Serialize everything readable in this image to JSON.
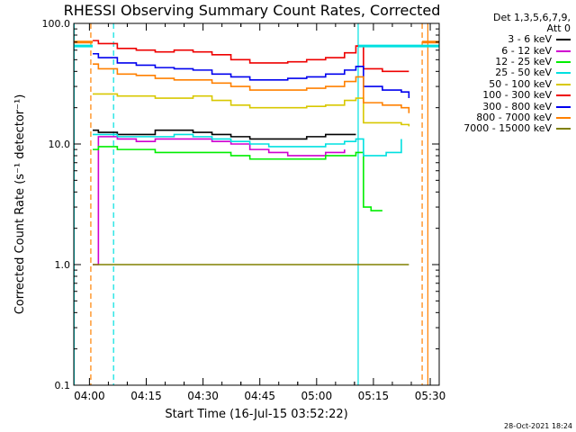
{
  "chart_data": {
    "type": "line",
    "title": "RHESSI Observing Summary Count Rates, Corrected",
    "xlabel": "Start Time (16-Jul-15 03:52:22)",
    "ylabel": "Corrected Count Rate (s⁻¹ detector⁻¹)",
    "yscale": "log",
    "ylim": [
      0.1,
      100
    ],
    "yticks": [
      "0.1",
      "1.0",
      "10.0",
      "100.0"
    ],
    "xlim_minutes": [
      3.5,
      100
    ],
    "xticks": [
      {
        "label": "04:00",
        "minutes": 7.63
      },
      {
        "label": "04:15",
        "minutes": 22.63
      },
      {
        "label": "04:30",
        "minutes": 37.63
      },
      {
        "label": "04:45",
        "minutes": 52.63
      },
      {
        "label": "05:00",
        "minutes": 67.63
      },
      {
        "label": "05:15",
        "minutes": 82.63
      },
      {
        "label": "05:30",
        "minutes": 97.63
      }
    ],
    "legend_header": [
      "Det 1,3,5,6,7,9,",
      "Att 0"
    ],
    "legend_position": "right",
    "series": [
      {
        "name": "3 - 6 keV",
        "color": "#000000",
        "x": [
          8.5,
          10,
          15,
          20,
          25,
          30,
          35,
          40,
          45,
          50,
          55,
          60,
          65,
          70,
          75,
          78
        ],
        "y": [
          13,
          12.5,
          12,
          12,
          13,
          13,
          12.5,
          12,
          11.5,
          11,
          11,
          11,
          11.5,
          12,
          12,
          12
        ]
      },
      {
        "name": "6 - 12 keV",
        "color": "#d000d0",
        "x": [
          8.5,
          10,
          15,
          20,
          25,
          30,
          35,
          40,
          45,
          50,
          55,
          60,
          65,
          70,
          75
        ],
        "y": [
          1.0,
          11.5,
          11,
          10.5,
          11,
          11,
          11,
          10.5,
          10,
          9,
          8.5,
          8,
          8,
          8.5,
          9
        ]
      },
      {
        "name": "12 - 25 keV",
        "color": "#00ee00",
        "x": [
          8.5,
          10,
          15,
          20,
          25,
          30,
          35,
          40,
          45,
          50,
          55,
          60,
          65,
          70,
          75,
          78,
          80,
          82,
          85
        ],
        "y": [
          9,
          9.5,
          9,
          9,
          8.5,
          8.5,
          8.5,
          8.5,
          8,
          7.5,
          7.5,
          7.5,
          7.5,
          8,
          8,
          8.5,
          3.0,
          2.8,
          2.8
        ]
      },
      {
        "name": "25 - 50 keV",
        "color": "#00e0e0",
        "x": [
          8.5,
          10,
          15,
          20,
          25,
          30,
          35,
          40,
          45,
          50,
          55,
          60,
          65,
          70,
          75,
          78,
          80,
          84,
          86,
          90
        ],
        "y": [
          12,
          12,
          11.5,
          11.5,
          11.5,
          12,
          11.5,
          11,
          10.5,
          10,
          9.5,
          9.5,
          9.5,
          10,
          10.5,
          11,
          8,
          8,
          8.5,
          11
        ]
      },
      {
        "name": "50 - 100 keV",
        "color": "#d8c800",
        "x": [
          8.5,
          10,
          15,
          20,
          25,
          30,
          35,
          40,
          45,
          50,
          55,
          60,
          65,
          70,
          75,
          78,
          80,
          85,
          90,
          92
        ],
        "y": [
          26,
          26,
          25,
          25,
          24,
          24,
          25,
          23,
          21,
          20,
          20,
          20,
          20.5,
          21,
          23,
          24,
          15,
          15,
          14.5,
          14
        ]
      },
      {
        "name": "100 - 300 keV",
        "color": "#ee0000",
        "x": [
          8.5,
          10,
          15,
          20,
          25,
          30,
          35,
          40,
          45,
          50,
          55,
          60,
          65,
          70,
          75,
          78,
          80,
          85,
          90,
          92
        ],
        "y": [
          72,
          68,
          62,
          60,
          58,
          60,
          58,
          55,
          50,
          47,
          47,
          48,
          50,
          52,
          57,
          65,
          42,
          40,
          40,
          40
        ]
      },
      {
        "name": "300 - 800 keV",
        "color": "#0000ee",
        "x": [
          8.5,
          10,
          15,
          20,
          25,
          30,
          35,
          40,
          45,
          50,
          55,
          60,
          65,
          70,
          75,
          78,
          80,
          85,
          90,
          92
        ],
        "y": [
          56,
          52,
          47,
          45,
          43,
          42,
          41,
          38,
          36,
          34,
          34,
          35,
          36,
          38,
          41,
          44,
          30,
          28,
          27,
          24
        ]
      },
      {
        "name": "800 - 7000 keV",
        "color": "#ff8000",
        "x": [
          8.5,
          10,
          15,
          20,
          25,
          30,
          35,
          40,
          45,
          50,
          55,
          60,
          65,
          70,
          75,
          78,
          80,
          85,
          90,
          92
        ],
        "y": [
          46,
          42,
          38,
          37,
          35,
          34,
          34,
          32,
          30,
          28,
          28,
          28,
          29,
          30,
          33,
          36,
          22,
          21,
          20,
          18
        ]
      },
      {
        "name": "7000 - 15000 keV",
        "color": "#808000",
        "x": [
          8.5,
          10,
          15,
          20,
          25,
          28,
          30,
          35,
          40,
          45,
          50,
          55,
          60,
          65,
          70,
          75,
          77,
          80,
          85,
          90,
          92
        ],
        "y": [
          1.0,
          1.0,
          1.0,
          1.0,
          1.0,
          1.0,
          1.0,
          1.0,
          1.0,
          1.0,
          1.0,
          1.0,
          1.0,
          1.0,
          1.0,
          1.0,
          1.0,
          1.0,
          1.0,
          1.0,
          1.0
        ]
      }
    ],
    "vertical_lines": [
      {
        "minutes": 3.6,
        "style": "solid",
        "color": "#00e0e0"
      },
      {
        "minutes": 8.0,
        "style": "dashed",
        "color": "#ff8000"
      },
      {
        "minutes": 14.0,
        "style": "dashed",
        "color": "#00e0e0"
      },
      {
        "minutes": 78.6,
        "style": "solid",
        "color": "#00e0e0"
      },
      {
        "minutes": 95.5,
        "style": "dashed",
        "color": "#ff8000"
      },
      {
        "minutes": 97.0,
        "style": "solid",
        "color": "#ff8000"
      }
    ],
    "timestamp": "28-Oct-2021 18:24"
  }
}
